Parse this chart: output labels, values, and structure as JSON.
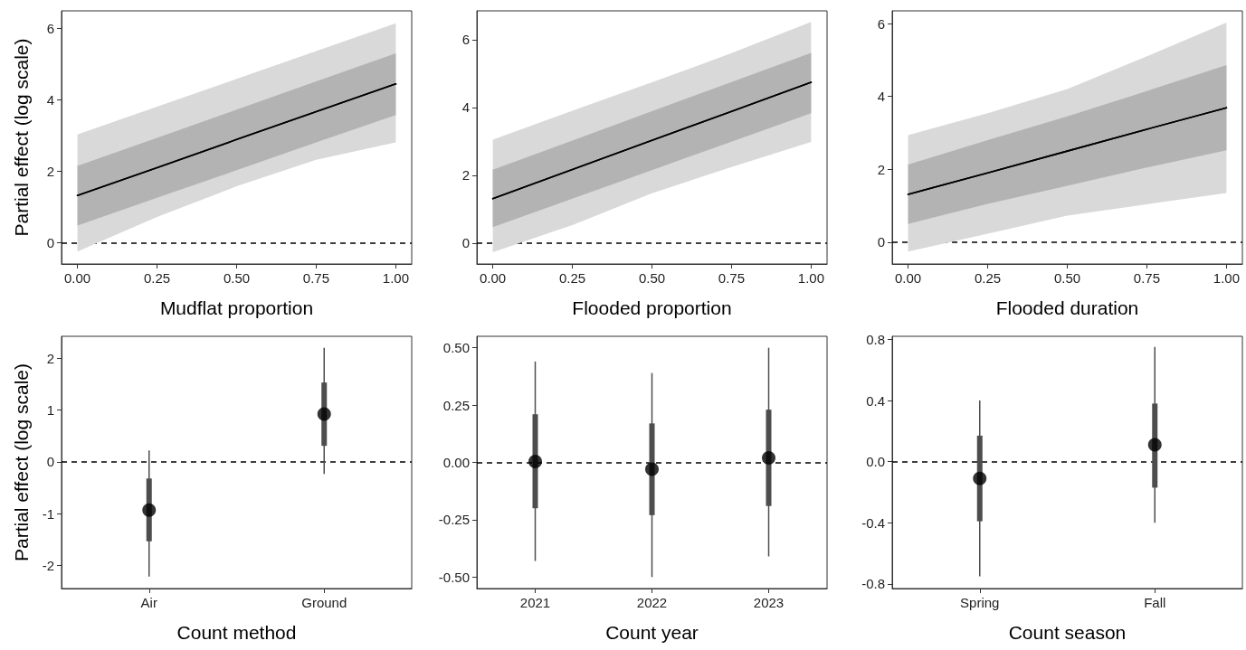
{
  "chart_data": [
    {
      "type": "line",
      "xlabel": "Mudflat proportion",
      "ylabel": "Partial effect (log scale)",
      "x": [
        0,
        0.25,
        0.5,
        0.75,
        1
      ],
      "marker": "none",
      "line_style": "solid",
      "series": [
        {
          "color": "#000000",
          "values": [
            1.32,
            2.1,
            2.89,
            3.67,
            4.45
          ],
          "lower": [
            0.48,
            1.26,
            2.03,
            2.81,
            3.58
          ],
          "upper": [
            2.15,
            2.94,
            3.73,
            4.52,
            5.31
          ]
        },
        {
          "color": "#000000",
          "values": [
            1.32,
            2.1,
            2.89,
            3.67,
            4.45
          ],
          "lower": [
            -0.25,
            0.72,
            1.58,
            2.32,
            2.81
          ],
          "upper": [
            3.03,
            3.81,
            4.59,
            5.37,
            6.15
          ]
        }
      ],
      "xlim": [
        -0.05,
        1.05
      ],
      "xticks": [
        {
          "value": 0,
          "label": "0.00"
        },
        {
          "value": 0.25,
          "label": "0.25"
        },
        {
          "value": 0.5,
          "label": "0.50"
        },
        {
          "value": 0.75,
          "label": "0.75"
        },
        {
          "value": 1,
          "label": "1.00"
        }
      ],
      "ylim": [
        -0.6,
        6.5
      ],
      "yticks": [
        0,
        2,
        4,
        6
      ],
      "ref_lines": [
        {
          "axis": "y",
          "value": 0,
          "color": "#000000",
          "line_style": "dashed"
        }
      ]
    },
    {
      "type": "line",
      "xlabel": "Flooded proportion",
      "x": [
        0,
        0.25,
        0.5,
        0.75,
        1
      ],
      "marker": "none",
      "line_style": "solid",
      "series": [
        {
          "color": "#000000",
          "values": [
            1.31,
            2.17,
            3.03,
            3.88,
            4.74
          ],
          "lower": [
            0.47,
            1.31,
            2.15,
            2.99,
            3.83
          ],
          "upper": [
            2.16,
            3.02,
            3.89,
            4.75,
            5.61
          ]
        },
        {
          "color": "#000000",
          "values": [
            1.31,
            2.17,
            3.03,
            3.88,
            4.74
          ],
          "lower": [
            -0.27,
            0.53,
            1.47,
            2.24,
            2.98
          ],
          "upper": [
            3.05,
            3.9,
            4.74,
            5.6,
            6.52
          ]
        }
      ],
      "xlim": [
        -0.05,
        1.05
      ],
      "xticks": [
        {
          "value": 0,
          "label": "0.00"
        },
        {
          "value": 0.25,
          "label": "0.25"
        },
        {
          "value": 0.5,
          "label": "0.50"
        },
        {
          "value": 0.75,
          "label": "0.75"
        },
        {
          "value": 1,
          "label": "1.00"
        }
      ],
      "ylim": [
        -0.62,
        6.85
      ],
      "yticks": [
        0,
        2,
        4,
        6
      ],
      "ref_lines": [
        {
          "axis": "y",
          "value": 0,
          "color": "#000000",
          "line_style": "dashed"
        }
      ]
    },
    {
      "type": "line",
      "xlabel": "Flooded duration",
      "x": [
        0,
        0.25,
        0.5,
        0.75,
        1
      ],
      "marker": "none",
      "line_style": "solid",
      "series": [
        {
          "color": "#000000",
          "values": [
            1.31,
            1.9,
            2.5,
            3.1,
            3.69
          ],
          "lower": [
            0.5,
            1.05,
            1.55,
            2.05,
            2.52
          ],
          "upper": [
            2.13,
            2.8,
            3.45,
            4.15,
            4.86
          ]
        },
        {
          "color": "#000000",
          "values": [
            1.31,
            1.9,
            2.5,
            3.1,
            3.69
          ],
          "lower": [
            -0.26,
            0.23,
            0.73,
            1.04,
            1.35
          ],
          "upper": [
            2.94,
            3.54,
            4.2,
            5.1,
            6.03
          ]
        }
      ],
      "xlim": [
        -0.05,
        1.05
      ],
      "xticks": [
        {
          "value": 0,
          "label": "0.00"
        },
        {
          "value": 0.25,
          "label": "0.25"
        },
        {
          "value": 0.5,
          "label": "0.50"
        },
        {
          "value": 0.75,
          "label": "0.75"
        },
        {
          "value": 1,
          "label": "1.00"
        }
      ],
      "ylim": [
        -0.6,
        6.35
      ],
      "yticks": [
        0,
        2,
        4,
        6
      ],
      "ref_lines": [
        {
          "axis": "y",
          "value": 0,
          "color": "#000000",
          "line_style": "dashed"
        }
      ]
    },
    {
      "type": "scatter",
      "xlabel": "Count method",
      "ylabel": "Partial effect (log scale)",
      "categories": [
        "Air",
        "Ground"
      ],
      "marker": "circle",
      "series": [
        {
          "color": "#000000",
          "values": [
            -0.93,
            0.92
          ],
          "errors": [
            [
              -2.21,
              0.22
            ],
            [
              -0.23,
              2.2
            ]
          ]
        },
        {
          "type": "bar",
          "color": "#4d4d4d",
          "base": [
            -1.53,
            0.31
          ],
          "values": [
            1.21,
            1.22
          ]
        }
      ],
      "ylim": [
        -2.44,
        2.42
      ],
      "yticks": [
        -2,
        -1,
        0,
        1,
        2
      ],
      "ref_lines": [
        {
          "axis": "y",
          "value": 0,
          "color": "#000000",
          "line_style": "dashed"
        }
      ]
    },
    {
      "type": "scatter",
      "xlabel": "Count year",
      "categories": [
        "2021",
        "2022",
        "2023"
      ],
      "marker": "circle",
      "series": [
        {
          "color": "#000000",
          "values": [
            0.004,
            -0.03,
            0.02
          ],
          "errors": [
            [
              -0.43,
              0.44
            ],
            [
              -0.5,
              0.39
            ],
            [
              -0.41,
              0.5
            ]
          ]
        },
        {
          "type": "bar",
          "color": "#4d4d4d",
          "base": [
            -0.2,
            -0.23,
            -0.19
          ],
          "values": [
            0.41,
            0.4,
            0.42
          ]
        }
      ],
      "ylim": [
        -0.55,
        0.55
      ],
      "yticks": [
        {
          "value": -0.5,
          "label": "-0.50"
        },
        {
          "value": -0.25,
          "label": "-0.25"
        },
        {
          "value": 0,
          "label": "0.00"
        },
        {
          "value": 0.25,
          "label": "0.25"
        },
        {
          "value": 0.5,
          "label": "0.50"
        }
      ],
      "ref_lines": [
        {
          "axis": "y",
          "value": 0,
          "color": "#000000",
          "line_style": "dashed"
        }
      ]
    },
    {
      "type": "scatter",
      "xlabel": "Count season",
      "categories": [
        "Spring",
        "Fall"
      ],
      "marker": "circle",
      "series": [
        {
          "color": "#000000",
          "values": [
            -0.11,
            0.11
          ],
          "errors": [
            [
              -0.75,
              0.4
            ],
            [
              -0.4,
              0.75
            ]
          ]
        },
        {
          "type": "bar",
          "color": "#4d4d4d",
          "base": [
            -0.39,
            -0.17
          ],
          "values": [
            0.56,
            0.55
          ]
        }
      ],
      "ylim": [
        -0.83,
        0.82
      ],
      "yticks": [
        {
          "value": -0.8,
          "label": "-0.8"
        },
        {
          "value": -0.4,
          "label": "-0.4"
        },
        {
          "value": 0,
          "label": "0.0"
        },
        {
          "value": 0.4,
          "label": "0.4"
        },
        {
          "value": 0.8,
          "label": "0.8"
        }
      ],
      "ref_lines": [
        {
          "axis": "y",
          "value": 0,
          "color": "#000000",
          "line_style": "dashed"
        }
      ]
    }
  ]
}
